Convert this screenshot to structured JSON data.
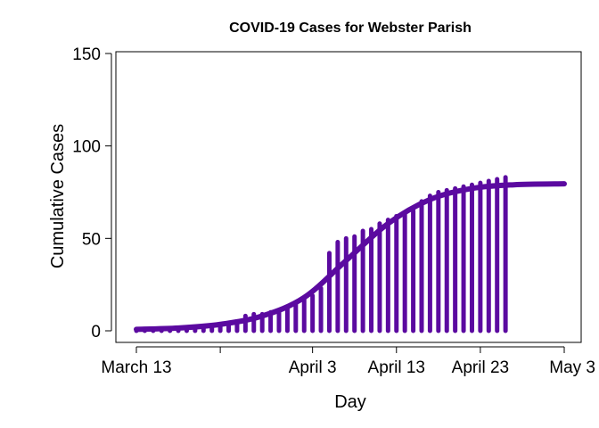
{
  "chart_data": {
    "type": "line",
    "title": "COVID-19 Cases for Webster Parish",
    "xlabel": "Day",
    "ylabel": "Cumulative Cases",
    "ylim": [
      0,
      150
    ],
    "xlim": [
      "2020-03-13",
      "2020-05-03"
    ],
    "x_ticks": [
      {
        "date": "2020-03-13",
        "label": "March 13"
      },
      {
        "date": "2020-03-23",
        "label": ""
      },
      {
        "date": "2020-04-03",
        "label": "April 3"
      },
      {
        "date": "2020-04-13",
        "label": "April 13"
      },
      {
        "date": "2020-04-23",
        "label": "April 23"
      },
      {
        "date": "2020-05-03",
        "label": "May 3"
      }
    ],
    "y_ticks": [
      0,
      50,
      100,
      150
    ],
    "color": "#5b0aa0",
    "grid": false,
    "legend": "none",
    "series": [
      {
        "style": "histogram-lines",
        "x": [
          "2020-03-13",
          "2020-03-14",
          "2020-03-15",
          "2020-03-16",
          "2020-03-17",
          "2020-03-18",
          "2020-03-19",
          "2020-03-20",
          "2020-03-21",
          "2020-03-22",
          "2020-03-23",
          "2020-03-24",
          "2020-03-25",
          "2020-03-26",
          "2020-03-27",
          "2020-03-28",
          "2020-03-29",
          "2020-03-30",
          "2020-03-31",
          "2020-04-01",
          "2020-04-02",
          "2020-04-03",
          "2020-04-04",
          "2020-04-05",
          "2020-04-06",
          "2020-04-07",
          "2020-04-08",
          "2020-04-09",
          "2020-04-10",
          "2020-04-11",
          "2020-04-12",
          "2020-04-13",
          "2020-04-14",
          "2020-04-15",
          "2020-04-16",
          "2020-04-17",
          "2020-04-18",
          "2020-04-19",
          "2020-04-20",
          "2020-04-21",
          "2020-04-22",
          "2020-04-23",
          "2020-04-24",
          "2020-04-25",
          "2020-04-26"
        ],
        "y": [
          0,
          0,
          0,
          0,
          0,
          0,
          1,
          1,
          2,
          2,
          3,
          3,
          4,
          8,
          9,
          9,
          10,
          11,
          13,
          15,
          18,
          19,
          23,
          42,
          48,
          50,
          51,
          54,
          55,
          58,
          60,
          62,
          63,
          65,
          70,
          73,
          75,
          76,
          77,
          78,
          79,
          80,
          81,
          82,
          83
        ]
      },
      {
        "style": "fitted-curve",
        "x": [
          "2020-03-13",
          "2020-03-18",
          "2020-03-23",
          "2020-03-28",
          "2020-04-02",
          "2020-04-07",
          "2020-04-12",
          "2020-04-17",
          "2020-04-22",
          "2020-04-27",
          "2020-05-03"
        ],
        "y": [
          0.8,
          1.5,
          3.5,
          8,
          18,
          38,
          58,
          71,
          77,
          79,
          79.5
        ]
      }
    ]
  }
}
